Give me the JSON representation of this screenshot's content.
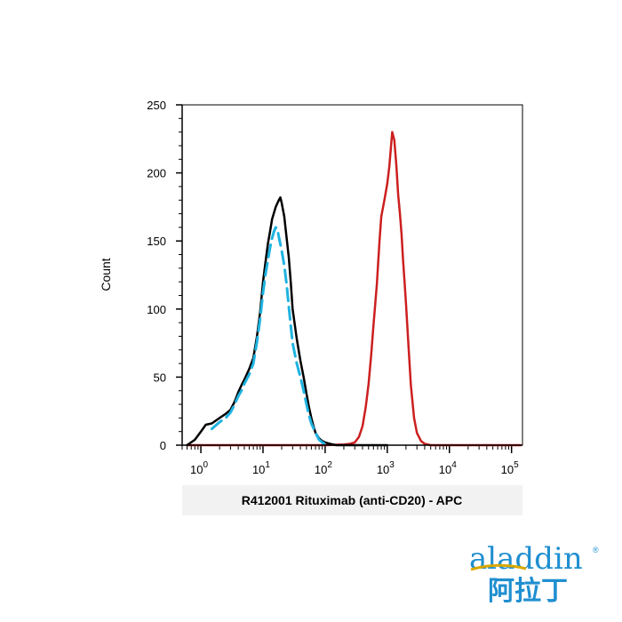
{
  "chart_data": {
    "type": "line",
    "title": "",
    "xlabel": "R412001 Rituximab (anti-CD20) - APC",
    "ylabel": "Count",
    "x_scale": "log",
    "xlim": [
      0.5,
      150000
    ],
    "ylim": [
      0,
      250
    ],
    "yticks": [
      {
        "value": 0,
        "label": "0"
      },
      {
        "value": 50,
        "label": "50"
      },
      {
        "value": 100,
        "label": "100"
      },
      {
        "value": 150,
        "label": "150"
      },
      {
        "value": 200,
        "label": "200"
      },
      {
        "value": 250,
        "label": "250"
      }
    ],
    "xticks": [
      {
        "value": 1,
        "base": "10",
        "exp": "0"
      },
      {
        "value": 10,
        "base": "10",
        "exp": "1"
      },
      {
        "value": 100,
        "base": "10",
        "exp": "2"
      },
      {
        "value": 1000,
        "base": "10",
        "exp": "3"
      },
      {
        "value": 10000,
        "base": "10",
        "exp": "4"
      },
      {
        "value": 100000,
        "base": "10",
        "exp": "5"
      }
    ],
    "grid": false,
    "legend": "none",
    "series": [
      {
        "color": "#cc1f1f",
        "style": "solid",
        "points": [
          [
            0.6,
            0
          ],
          [
            100,
            0
          ],
          [
            200,
            0.5
          ],
          [
            250,
            1
          ],
          [
            300,
            2
          ],
          [
            350,
            6
          ],
          [
            400,
            14
          ],
          [
            450,
            28
          ],
          [
            500,
            45
          ],
          [
            550,
            66
          ],
          [
            600,
            88
          ],
          [
            680,
            118
          ],
          [
            750,
            150
          ],
          [
            800,
            168
          ],
          [
            900,
            180
          ],
          [
            1000,
            192
          ],
          [
            1080,
            205
          ],
          [
            1150,
            220
          ],
          [
            1200,
            230
          ],
          [
            1300,
            224
          ],
          [
            1400,
            205
          ],
          [
            1500,
            184
          ],
          [
            1600,
            170
          ],
          [
            1700,
            155
          ],
          [
            1800,
            135
          ],
          [
            1900,
            120
          ],
          [
            2000,
            104
          ],
          [
            2200,
            72
          ],
          [
            2400,
            44
          ],
          [
            2700,
            20
          ],
          [
            3000,
            9
          ],
          [
            3500,
            3
          ],
          [
            4000,
            1
          ],
          [
            5000,
            0
          ],
          [
            140000,
            0
          ]
        ]
      },
      {
        "color": "#000000",
        "style": "solid",
        "points": [
          [
            0.6,
            0
          ],
          [
            0.8,
            4
          ],
          [
            1.0,
            10
          ],
          [
            1.2,
            15
          ],
          [
            1.5,
            16
          ],
          [
            2.0,
            20
          ],
          [
            2.5,
            23
          ],
          [
            3.0,
            26
          ],
          [
            3.5,
            32
          ],
          [
            4.0,
            39
          ],
          [
            4.5,
            44
          ],
          [
            5.0,
            48
          ],
          [
            6.0,
            56
          ],
          [
            7.0,
            64
          ],
          [
            8.0,
            80
          ],
          [
            9.0,
            98
          ],
          [
            10,
            120
          ],
          [
            11,
            135
          ],
          [
            12,
            148
          ],
          [
            13,
            157
          ],
          [
            14,
            166
          ],
          [
            16,
            175
          ],
          [
            18,
            180
          ],
          [
            19,
            182
          ],
          [
            20,
            178
          ],
          [
            22,
            168
          ],
          [
            24,
            152
          ],
          [
            26,
            138
          ],
          [
            28,
            120
          ],
          [
            30,
            100
          ],
          [
            35,
            78
          ],
          [
            40,
            62
          ],
          [
            45,
            50
          ],
          [
            50,
            38
          ],
          [
            55,
            28
          ],
          [
            60,
            20
          ],
          [
            65,
            14
          ],
          [
            70,
            9
          ],
          [
            80,
            5
          ],
          [
            90,
            3
          ],
          [
            100,
            2
          ],
          [
            120,
            1
          ],
          [
            150,
            0
          ],
          [
            1000,
            0
          ]
        ]
      },
      {
        "color": "#1fb3e0",
        "style": "dashed",
        "points": [
          [
            1.5,
            12
          ],
          [
            2.0,
            17
          ],
          [
            2.5,
            20
          ],
          [
            3.0,
            24
          ],
          [
            3.5,
            30
          ],
          [
            4.0,
            36
          ],
          [
            4.5,
            40
          ],
          [
            5.0,
            45
          ],
          [
            6.0,
            52
          ],
          [
            7.0,
            60
          ],
          [
            8.0,
            76
          ],
          [
            9.0,
            93
          ],
          [
            10,
            112
          ],
          [
            11,
            126
          ],
          [
            12,
            136
          ],
          [
            13,
            145
          ],
          [
            14,
            152
          ],
          [
            15,
            157
          ],
          [
            16,
            160
          ],
          [
            17,
            159
          ],
          [
            18,
            153
          ],
          [
            20,
            143
          ],
          [
            22,
            132
          ],
          [
            24,
            118
          ],
          [
            26,
            102
          ],
          [
            28,
            88
          ],
          [
            30,
            75
          ],
          [
            35,
            60
          ],
          [
            40,
            50
          ],
          [
            45,
            40
          ],
          [
            50,
            30
          ],
          [
            55,
            22
          ],
          [
            60,
            16
          ],
          [
            70,
            9
          ],
          [
            80,
            4
          ],
          [
            90,
            2
          ],
          [
            110,
            0
          ]
        ]
      }
    ]
  },
  "logo": {
    "brand": "aladdin",
    "reg": "®",
    "chinese": "阿拉丁"
  }
}
